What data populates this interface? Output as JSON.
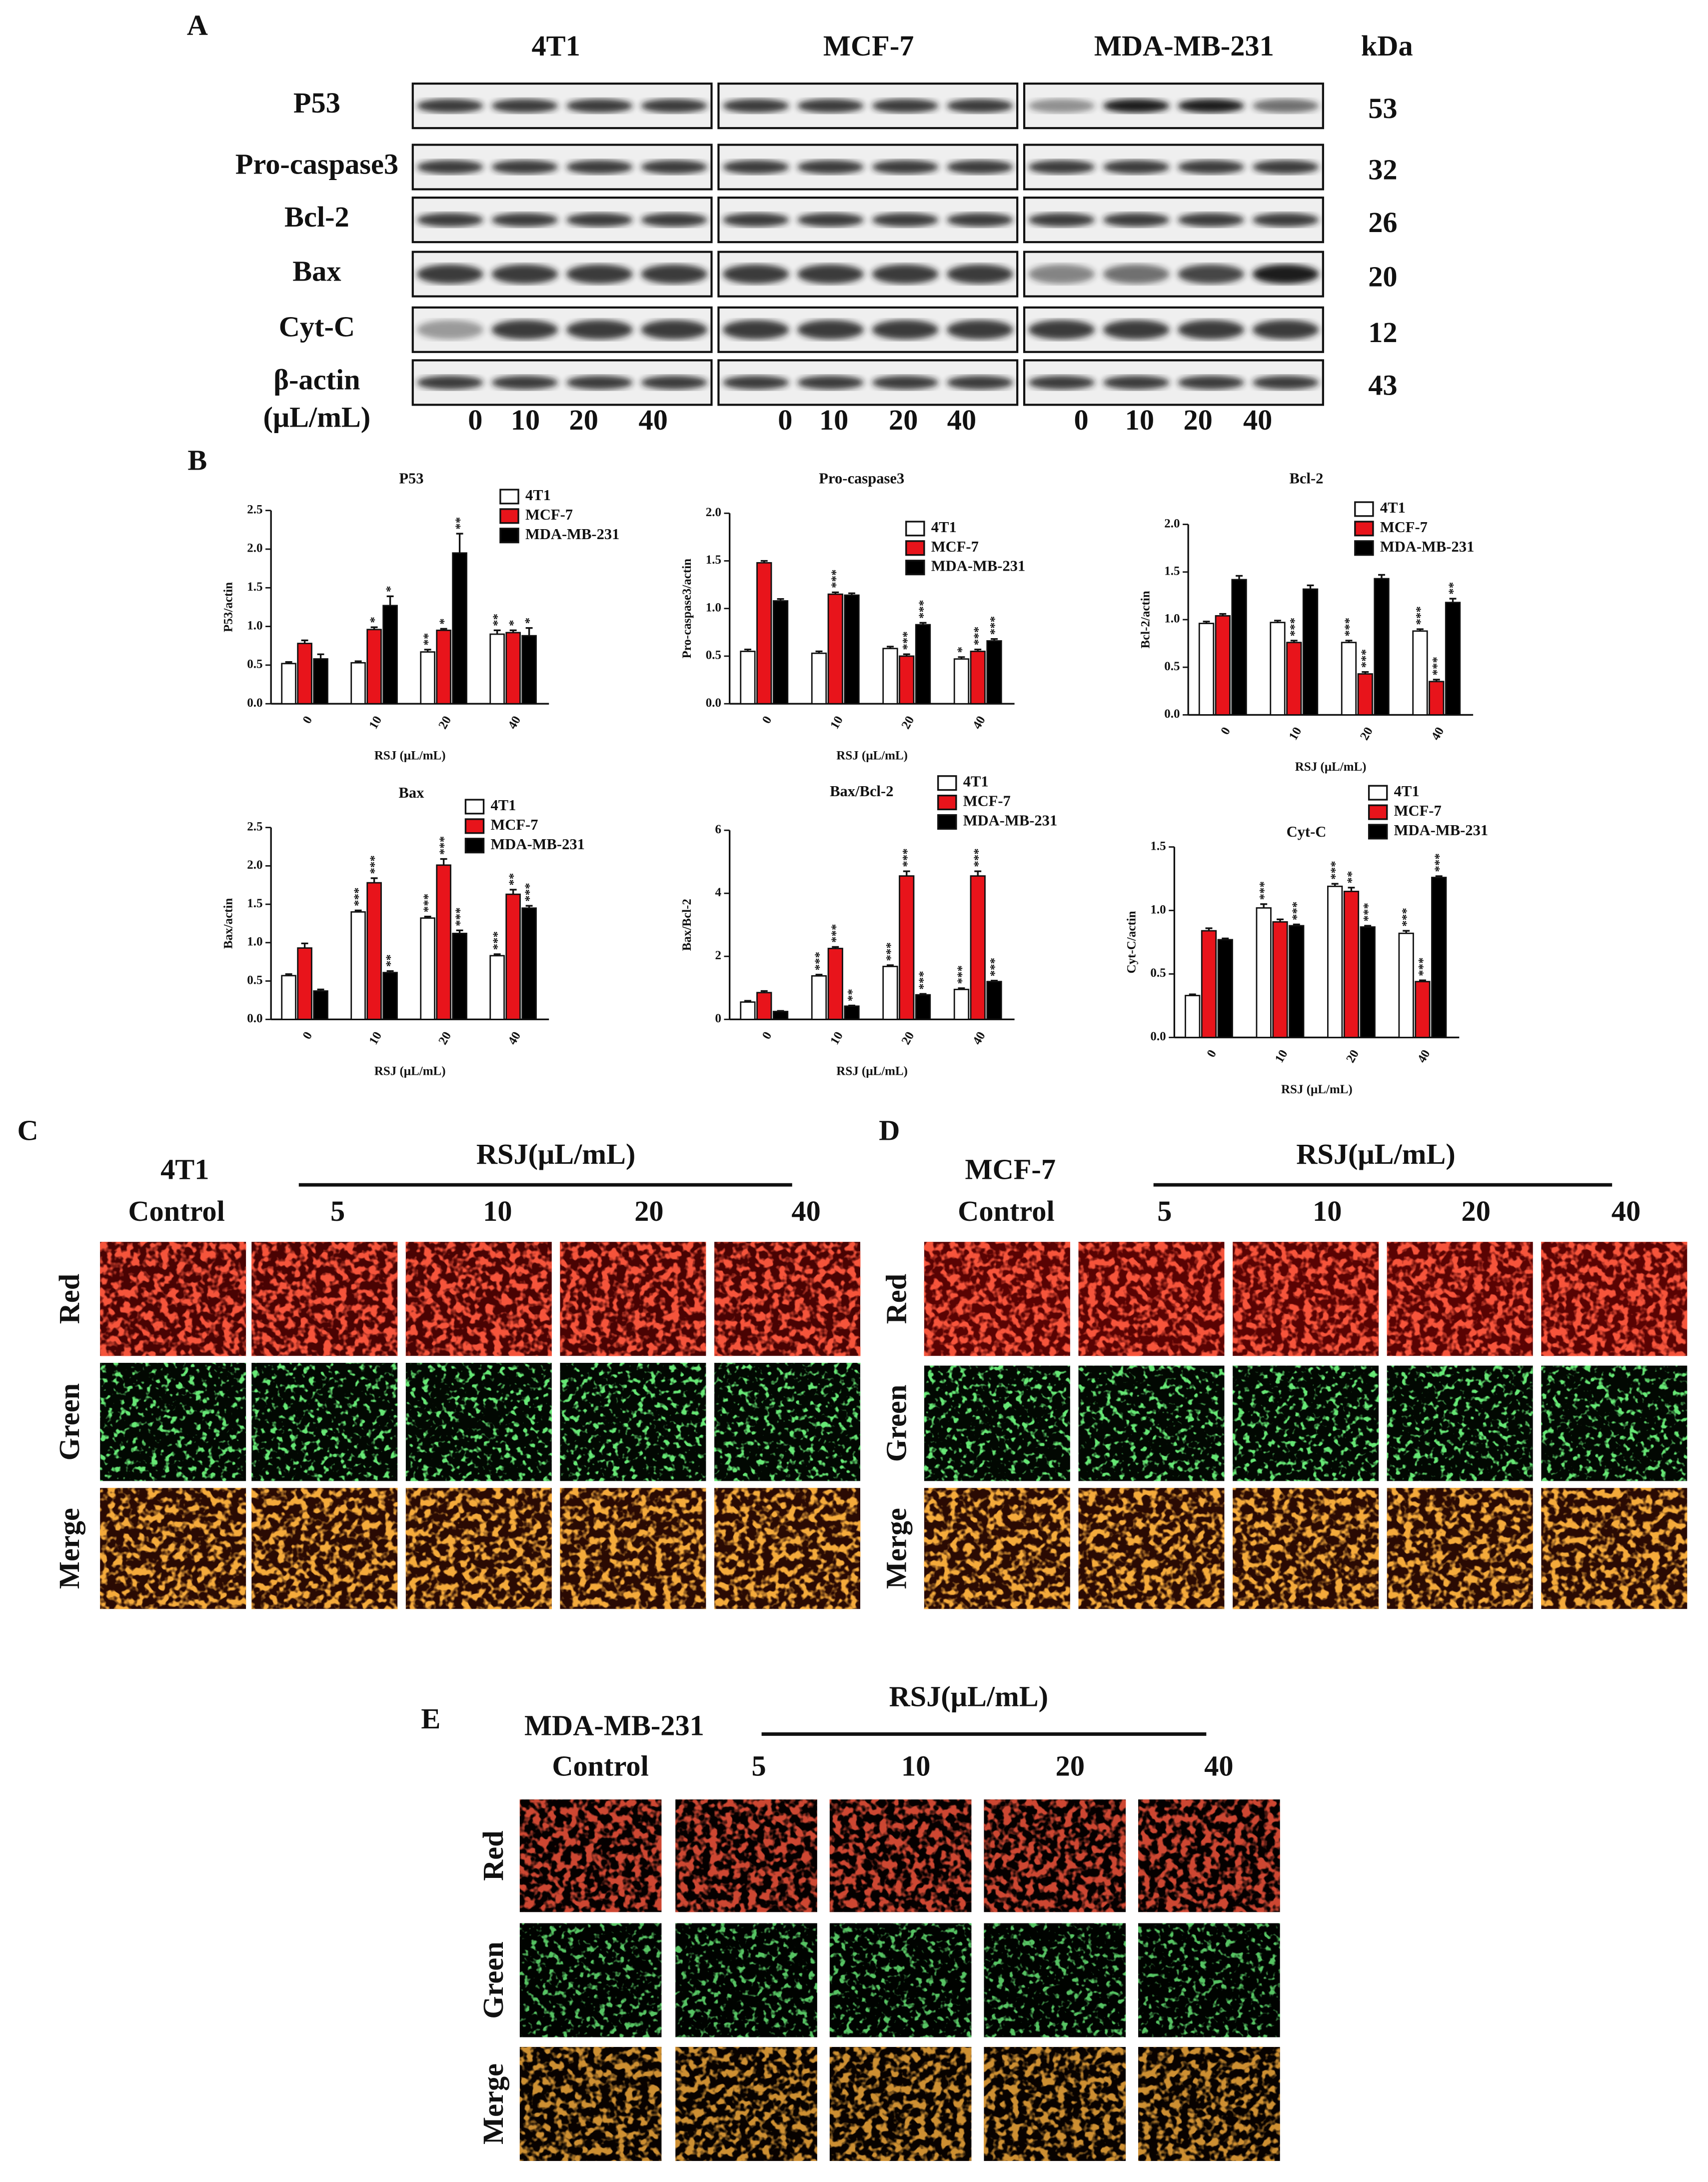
{
  "western_blot": {
    "panel": "A",
    "cell_lines": [
      "4T1",
      "MCF-7",
      "MDA-MB-231"
    ],
    "kda_header": "kDa",
    "proteins": [
      {
        "name": "P53",
        "kda": 53
      },
      {
        "name": "Pro-caspase3",
        "kda": 32
      },
      {
        "name": "Bcl-2",
        "kda": 26
      },
      {
        "name": "Bax",
        "kda": 20
      },
      {
        "name": "Cyt-C",
        "kda": 12
      },
      {
        "name": "β-actin",
        "kda": 43
      }
    ],
    "dose_label": "(μL/mL)",
    "doses": [
      "0",
      "10",
      "20",
      "40"
    ]
  },
  "panel_b_label": "B",
  "chart_data": [
    {
      "type": "bar",
      "title": "P53",
      "x_label": "RSJ (μL/mL)",
      "y_label": "P53/actin",
      "categories": [
        "0",
        "10",
        "20",
        "40"
      ],
      "ylim": [
        0,
        2.5
      ],
      "yticks": [
        {
          "value": 0,
          "label": "0.0"
        },
        0.5,
        {
          "value": 1,
          "label": "1.0"
        },
        1.5,
        {
          "value": 2,
          "label": "2.0"
        },
        2.5
      ],
      "series": [
        {
          "name": "4T1",
          "color": "#ffffff",
          "values": [
            0.52,
            0.53,
            0.67,
            0.9
          ],
          "errors": [
            0.02,
            0.02,
            0.03,
            0.05
          ],
          "significance": [
            null,
            null,
            "**",
            "**"
          ]
        },
        {
          "name": "MCF-7",
          "color": "#e8141b",
          "values": [
            0.78,
            0.96,
            0.95,
            0.92
          ],
          "errors": [
            0.04,
            0.03,
            0.02,
            0.03
          ],
          "significance": [
            null,
            "*",
            "*",
            "*"
          ]
        },
        {
          "name": "MDA-MB-231",
          "color": "#000000",
          "values": [
            0.58,
            1.27,
            1.95,
            0.88
          ],
          "errors": [
            0.06,
            0.12,
            0.25,
            0.1
          ],
          "significance": [
            null,
            "*",
            "**",
            "*"
          ]
        }
      ]
    },
    {
      "type": "bar",
      "title": "Pro-caspase3",
      "x_label": "RSJ (μL/mL)",
      "y_label": "Pro-caspase3/actin",
      "categories": [
        "0",
        "10",
        "20",
        "40"
      ],
      "ylim": [
        0,
        2
      ],
      "yticks": [
        {
          "value": 0,
          "label": "0.0"
        },
        0.5,
        {
          "value": 1,
          "label": "1.0"
        },
        1.5,
        {
          "value": 2,
          "label": "2.0"
        }
      ],
      "series": [
        {
          "name": "4T1",
          "color": "#ffffff",
          "values": [
            0.55,
            0.53,
            0.58,
            0.47
          ],
          "errors": [
            0.02,
            0.02,
            0.02,
            0.02
          ],
          "significance": [
            null,
            null,
            null,
            "*"
          ]
        },
        {
          "name": "MCF-7",
          "color": "#e8141b",
          "values": [
            1.48,
            1.15,
            0.5,
            0.55
          ],
          "errors": [
            0.02,
            0.02,
            0.02,
            0.02
          ],
          "significance": [
            null,
            "***",
            "***",
            "***"
          ]
        },
        {
          "name": "MDA-MB-231",
          "color": "#000000",
          "values": [
            1.08,
            1.14,
            0.83,
            0.66
          ],
          "errors": [
            0.02,
            0.02,
            0.02,
            0.02
          ],
          "significance": [
            null,
            null,
            "***",
            "***"
          ]
        }
      ]
    },
    {
      "type": "bar",
      "title": "Bcl-2",
      "x_label": "RSJ (μL/mL)",
      "y_label": "Bcl-2/actin",
      "categories": [
        "0",
        "10",
        "20",
        "40"
      ],
      "ylim": [
        0,
        2
      ],
      "yticks": [
        {
          "value": 0,
          "label": "0.0"
        },
        0.5,
        {
          "value": 1,
          "label": "1.0"
        },
        1.5,
        {
          "value": 2,
          "label": "2.0"
        }
      ],
      "series": [
        {
          "name": "4T1",
          "color": "#ffffff",
          "values": [
            0.96,
            0.97,
            0.76,
            0.88
          ],
          "errors": [
            0.02,
            0.02,
            0.02,
            0.02
          ],
          "significance": [
            null,
            null,
            "***",
            "***"
          ]
        },
        {
          "name": "MCF-7",
          "color": "#e8141b",
          "values": [
            1.04,
            0.76,
            0.43,
            0.35
          ],
          "errors": [
            0.02,
            0.02,
            0.02,
            0.02
          ],
          "significance": [
            null,
            "***",
            "***",
            "***"
          ]
        },
        {
          "name": "MDA-MB-231",
          "color": "#000000",
          "values": [
            1.42,
            1.32,
            1.43,
            1.18
          ],
          "errors": [
            0.04,
            0.04,
            0.04,
            0.04
          ],
          "significance": [
            null,
            null,
            null,
            "**"
          ]
        }
      ]
    },
    {
      "type": "bar",
      "title": "Bax",
      "x_label": "RSJ (μL/mL)",
      "y_label": "Bax/actin",
      "categories": [
        "0",
        "10",
        "20",
        "40"
      ],
      "ylim": [
        0,
        2.5
      ],
      "yticks": [
        {
          "value": 0,
          "label": "0.0"
        },
        0.5,
        {
          "value": 1,
          "label": "1.0"
        },
        1.5,
        {
          "value": 2,
          "label": "2.0"
        },
        2.5
      ],
      "series": [
        {
          "name": "4T1",
          "color": "#ffffff",
          "values": [
            0.57,
            1.4,
            1.32,
            0.83
          ],
          "errors": [
            0.02,
            0.02,
            0.02,
            0.02
          ],
          "significance": [
            null,
            "***",
            "***",
            "***"
          ]
        },
        {
          "name": "MCF-7",
          "color": "#e8141b",
          "values": [
            0.93,
            1.78,
            2.01,
            1.63
          ],
          "errors": [
            0.06,
            0.06,
            0.08,
            0.06
          ],
          "significance": [
            null,
            "***",
            "***",
            "**"
          ]
        },
        {
          "name": "MDA-MB-231",
          "color": "#000000",
          "values": [
            0.37,
            0.61,
            1.12,
            1.45
          ],
          "errors": [
            0.02,
            0.02,
            0.04,
            0.03
          ],
          "significance": [
            null,
            "**",
            "***",
            "***"
          ]
        }
      ]
    },
    {
      "type": "bar",
      "title": "Bax/Bcl-2",
      "x_label": "RSJ (μL/mL)",
      "y_label": "Bax/Bcl-2",
      "categories": [
        "0",
        "10",
        "20",
        "40"
      ],
      "ylim": [
        0,
        6
      ],
      "yticks": [
        0,
        2,
        4,
        6
      ],
      "series": [
        {
          "name": "4T1",
          "color": "#ffffff",
          "values": [
            0.55,
            1.38,
            1.68,
            0.95
          ],
          "errors": [
            0.04,
            0.04,
            0.04,
            0.04
          ],
          "significance": [
            null,
            "***",
            "***",
            "***"
          ]
        },
        {
          "name": "MCF-7",
          "color": "#e8141b",
          "values": [
            0.85,
            2.25,
            4.55,
            4.55
          ],
          "errors": [
            0.05,
            0.05,
            0.15,
            0.15
          ],
          "significance": [
            null,
            "***",
            "***",
            "***"
          ]
        },
        {
          "name": "MDA-MB-231",
          "color": "#000000",
          "values": [
            0.25,
            0.42,
            0.78,
            1.2
          ],
          "errors": [
            0.02,
            0.02,
            0.03,
            0.03
          ],
          "significance": [
            null,
            "**",
            "***",
            "***"
          ]
        }
      ]
    },
    {
      "type": "bar",
      "title": "Cyt-C",
      "x_label": "RSJ (μL/mL)",
      "y_label": "Cyt-C/actin",
      "categories": [
        "0",
        "10",
        "20",
        "40"
      ],
      "ylim": [
        0,
        1.5
      ],
      "yticks": [
        {
          "value": 0,
          "label": "0.0"
        },
        0.5,
        {
          "value": 1,
          "label": "1.0"
        },
        1.5
      ],
      "series": [
        {
          "name": "4T1",
          "color": "#ffffff",
          "values": [
            0.33,
            1.02,
            1.19,
            0.82
          ],
          "errors": [
            0.01,
            0.03,
            0.02,
            0.02
          ],
          "significance": [
            null,
            "***",
            "***",
            "***"
          ]
        },
        {
          "name": "MCF-7",
          "color": "#e8141b",
          "values": [
            0.84,
            0.91,
            1.15,
            0.44
          ],
          "errors": [
            0.02,
            0.02,
            0.03,
            0.01
          ],
          "significance": [
            null,
            null,
            "**",
            "***"
          ]
        },
        {
          "name": "MDA-MB-231",
          "color": "#000000",
          "values": [
            0.77,
            0.88,
            0.87,
            1.26
          ],
          "errors": [
            0.01,
            0.01,
            0.01,
            0.01
          ],
          "significance": [
            null,
            "***",
            "***",
            "***"
          ]
        }
      ]
    }
  ],
  "fluorescence": [
    {
      "panel": "C",
      "cell_line": "4T1",
      "control": "Control",
      "treatment": "RSJ(μL/mL)",
      "doses": [
        "5",
        "10",
        "20",
        "40"
      ],
      "channels": [
        "Red",
        "Green",
        "Merge"
      ]
    },
    {
      "panel": "D",
      "cell_line": "MCF-7",
      "control": "Control",
      "treatment": "RSJ(μL/mL)",
      "doses": [
        "5",
        "10",
        "20",
        "40"
      ],
      "channels": [
        "Red",
        "Green",
        "Merge"
      ]
    },
    {
      "panel": "E",
      "cell_line": "MDA-MB-231",
      "control": "Control",
      "treatment": "RSJ(μL/mL)",
      "doses": [
        "5",
        "10",
        "20",
        "40"
      ],
      "channels": [
        "Red",
        "Green",
        "Merge"
      ]
    }
  ]
}
